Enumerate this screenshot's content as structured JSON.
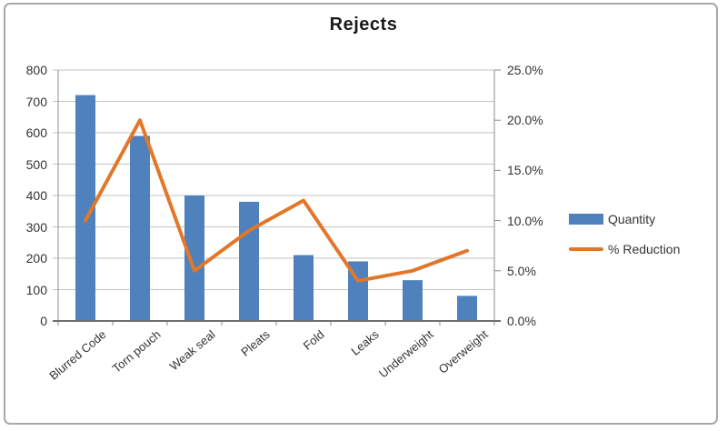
{
  "chart_data": {
    "type": "combo",
    "title": "Rejects",
    "categories": [
      "Blurred Code",
      "Torn pouch",
      "Weak seal",
      "Pleats",
      "Fold",
      "Leaks",
      "Underweight",
      "Overweight"
    ],
    "series": [
      {
        "name": "Quantity",
        "type": "bar",
        "axis": "left",
        "color": "#4F81BD",
        "values": [
          720,
          590,
          400,
          380,
          210,
          190,
          130,
          80
        ]
      },
      {
        "name": "% Reduction",
        "type": "line",
        "axis": "right",
        "color": "#E2772A",
        "unit": "%",
        "values": [
          10,
          20,
          5,
          9,
          12,
          4,
          5,
          7
        ]
      }
    ],
    "left_axis": {
      "min": 0,
      "max": 800,
      "step": 100,
      "tick_labels": [
        "0",
        "100",
        "200",
        "300",
        "400",
        "500",
        "600",
        "700",
        "800"
      ]
    },
    "right_axis": {
      "min": 0,
      "max": 25,
      "step": 5,
      "tick_labels": [
        "0.0%",
        "5.0%",
        "10.0%",
        "15.0%",
        "20.0%",
        "25.0%"
      ]
    },
    "legend": {
      "position": "right",
      "items": [
        "Quantity",
        "% Reduction"
      ]
    },
    "grid": true
  },
  "colors": {
    "bar": "#4F81BD",
    "line": "#E2772A",
    "grid": "#c3c3c3",
    "axis": "#8c8c8c",
    "axis_bottom": "#6e6e6e",
    "text": "#333333",
    "title": "#1a1a1a",
    "frame_border": "#a9a9a9",
    "background": "#ffffff"
  }
}
